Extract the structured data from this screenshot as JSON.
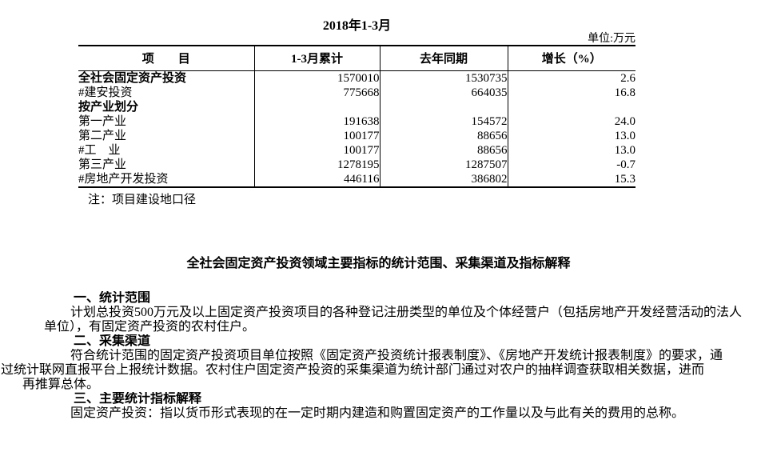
{
  "page": {
    "title": "2018年1-3月",
    "unit_label": "单位:万元"
  },
  "table": {
    "headers": [
      "项　　目",
      "1-3月累计",
      "去年同期",
      "增长（%）"
    ],
    "rows": [
      {
        "item": "全社会固定资产投资",
        "current": "1570010",
        "last_year": "1530735",
        "growth": "2.6"
      },
      {
        "item": "#建安投资",
        "current": "775668",
        "last_year": "664035",
        "growth": "16.8"
      },
      {
        "item": "按产业划分",
        "current": "",
        "last_year": "",
        "growth": ""
      },
      {
        "item": "第一产业",
        "current": "191638",
        "last_year": "154572",
        "growth": "24.0"
      },
      {
        "item": "第二产业",
        "current": "100177",
        "last_year": "88656",
        "growth": "13.0"
      },
      {
        "item": "#工　业",
        "current": "100177",
        "last_year": "88656",
        "growth": "13.0"
      },
      {
        "item": "第三产业",
        "current": "1278195",
        "last_year": "1287507",
        "growth": "-0.7"
      },
      {
        "item": "#房地产开发投资",
        "current": "446116",
        "last_year": "386802",
        "growth": "15.3"
      }
    ],
    "note": "注：项目建设地口径"
  },
  "explanation": {
    "title": "全社会固定资产投资领域主要指标的统计范围、采集渠道及指标解释",
    "lines": [
      "一、统计范围",
      "计划总投资500万元及以上固定资产投资项目的各种登记注册类型的单位及个体经营户（包括房地产开发经营活动的法人",
      "单位），有固定资产投资的农村住户。",
      "二、采集渠道",
      "符合统计范围的固定资产投资项目单位按照《固定资产投资统计报表制度》、《房地产开发统计报表制度》的要求，通",
      "过统计联网直报平台上报统计数据。农村住户固定资产投资的采集渠道为统计部门通过对农户的抽样调查获取相关数据，进而",
      "再推算总体。",
      "三、主要统计指标解释",
      "固定资产投资：指以货币形式表现的在一定时期内建造和购置固定资产的工作量以及与此有关的费用的总称。"
    ]
  }
}
